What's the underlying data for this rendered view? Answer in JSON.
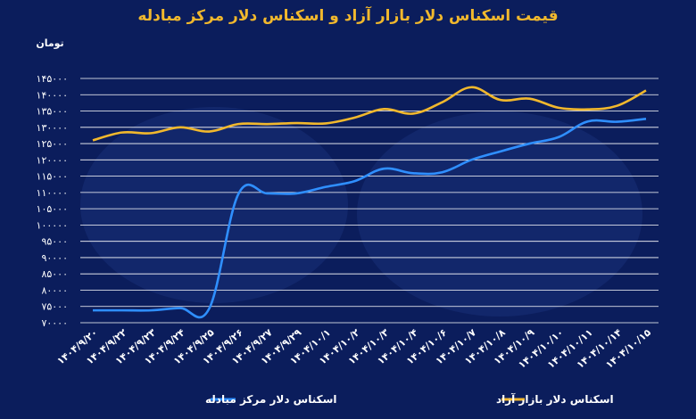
{
  "chart_data": {
    "type": "line",
    "title": "قیمت اسکناس دلار بازار آزاد و اسکناس دلار مرکز مبادله",
    "ylabel": "تومان",
    "xlabel": "",
    "ylim": [
      70000,
      145000
    ],
    "yticks": [
      70000,
      75000,
      80000,
      85000,
      90000,
      95000,
      100000,
      105000,
      110000,
      115000,
      120000,
      125000,
      130000,
      135000,
      140000,
      145000
    ],
    "ytick_labels": [
      "۷۰۰۰۰",
      "۷۵۰۰۰",
      "۸۰۰۰۰",
      "۸۵۰۰۰",
      "۹۰۰۰۰",
      "۹۵۰۰۰",
      "۱۰۰۰۰۰",
      "۱۰۵۰۰۰",
      "۱۱۰۰۰۰",
      "۱۱۵۰۰۰",
      "۱۲۰۰۰۰",
      "۱۲۵۰۰۰",
      "۱۳۰۰۰۰",
      "۱۳۵۰۰۰",
      "۱۴۰۰۰۰",
      "۱۴۵۰۰۰"
    ],
    "categories": [
      "۱۴۰۴/۹/۲۰",
      "۱۴۰۴/۹/۲۲",
      "۱۴۰۴/۹/۲۳",
      "۱۴۰۴/۹/۲۴",
      "۱۴۰۴/۹/۲۵",
      "۱۴۰۴/۹/۲۶",
      "۱۴۰۴/۹/۲۷",
      "۱۴۰۴/۹/۲۹",
      "۱۴۰۴/۱۰/۱",
      "۱۴۰۴/۱۰/۲",
      "۱۴۰۴/۱۰/۳",
      "۱۴۰۴/۱۰/۴",
      "۱۴۰۴/۱۰/۶",
      "۱۴۰۴/۱۰/۷",
      "۱۴۰۴/۱۰/۸",
      "۱۴۰۴/۱۰/۹",
      "۱۴۰۴/۱۰/۱۰",
      "۱۴۰۴/۱۰/۱۱",
      "۱۴۰۴/۱۰/۱۴",
      "۱۴۰۴/۱۰/۱۵"
    ],
    "grid": true,
    "legend_position": "bottom-center",
    "series": [
      {
        "name": "اسکناس دلار بازار آزاد",
        "color": "#f1b82d",
        "values": [
          126000,
          128400,
          128200,
          130000,
          128700,
          131000,
          131000,
          131300,
          131200,
          133000,
          135600,
          134200,
          137700,
          142300,
          138400,
          138800,
          136000,
          135500,
          136600,
          141300
        ]
      },
      {
        "name": "اسکناس دلار مرکز مبادله",
        "color": "#2f8fff",
        "values": [
          73800,
          73800,
          73800,
          74500,
          74400,
          109500,
          109700,
          109700,
          111700,
          113500,
          117300,
          115900,
          116200,
          120000,
          122600,
          125000,
          127000,
          131800,
          131700,
          132600
        ]
      }
    ]
  }
}
